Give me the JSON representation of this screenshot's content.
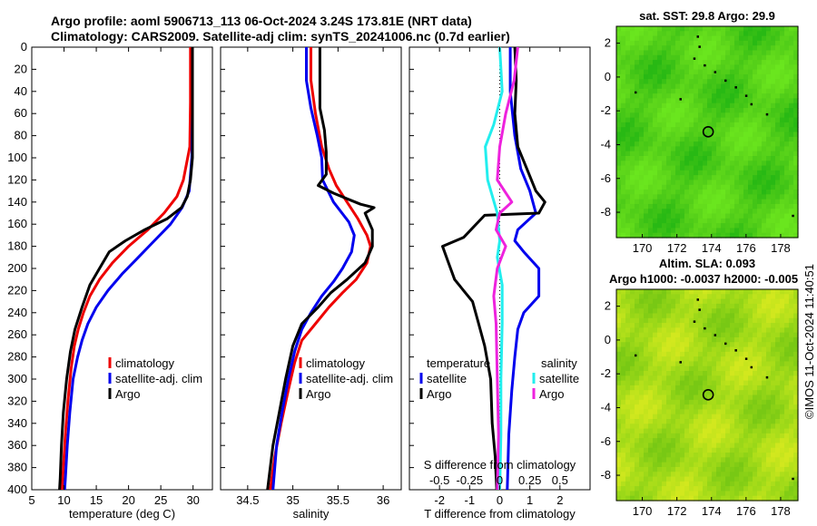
{
  "header": {
    "line1": "Argo profile: aoml 5906713_113 06-Oct-2024 3.24S 173.81E (NRT data)",
    "line2": "Climatology: CARS2009. Satellite-adj clim: synTS_20241006.nc (0.7d earlier)"
  },
  "credit": "©IMOS 11-Oct-2024 11:40:51",
  "colors": {
    "climatology": "#ee0000",
    "satellite": "#0000ee",
    "argo": "#000000",
    "salinity_satellite": "#22eeee",
    "salinity_argo": "#ee22dd"
  },
  "chart_data": [
    {
      "id": "temperature",
      "type": "line",
      "xlabel": "temperature (deg C)",
      "ylabel": "",
      "xlim": [
        5,
        33
      ],
      "ylim": [
        400,
        0
      ],
      "xticks": [
        5,
        10,
        15,
        20,
        25,
        30
      ],
      "yticks": [
        0,
        20,
        40,
        60,
        80,
        100,
        120,
        140,
        160,
        180,
        200,
        220,
        240,
        260,
        280,
        300,
        320,
        340,
        360,
        380,
        400
      ],
      "legend": [
        "climatology",
        "satellite-adj. clim",
        "Argo"
      ],
      "series": [
        {
          "name": "climatology",
          "color": "#ee0000",
          "points": [
            [
              29.6,
              0
            ],
            [
              29.6,
              50
            ],
            [
              29.5,
              90
            ],
            [
              28.5,
              120
            ],
            [
              27.5,
              135
            ],
            [
              25.5,
              150
            ],
            [
              23,
              165
            ],
            [
              20,
              180
            ],
            [
              17.5,
              195
            ],
            [
              15.5,
              210
            ],
            [
              14,
              225
            ],
            [
              13,
              240
            ],
            [
              12.2,
              255
            ],
            [
              11.6,
              270
            ],
            [
              11.1,
              290
            ],
            [
              10.6,
              320
            ],
            [
              10.2,
              350
            ],
            [
              9.9,
              380
            ],
            [
              9.7,
              400
            ]
          ]
        },
        {
          "name": "satellite-adj. clim",
          "color": "#0000ee",
          "points": [
            [
              29.9,
              0
            ],
            [
              29.9,
              60
            ],
            [
              29.8,
              100
            ],
            [
              29.4,
              130
            ],
            [
              28.3,
              145
            ],
            [
              26.5,
              160
            ],
            [
              24,
              175
            ],
            [
              21.5,
              190
            ],
            [
              19,
              205
            ],
            [
              16.8,
              220
            ],
            [
              15,
              235
            ],
            [
              13.7,
              250
            ],
            [
              12.8,
              265
            ],
            [
              12.1,
              280
            ],
            [
              11.4,
              300
            ],
            [
              10.9,
              330
            ],
            [
              10.5,
              360
            ],
            [
              10.2,
              390
            ],
            [
              10.1,
              400
            ]
          ]
        },
        {
          "name": "Argo",
          "color": "#000000",
          "points": [
            [
              29.9,
              0
            ],
            [
              29.9,
              60
            ],
            [
              29.9,
              100
            ],
            [
              29.6,
              120
            ],
            [
              29.1,
              135
            ],
            [
              28.2,
              145
            ],
            [
              26,
              155
            ],
            [
              22.5,
              165
            ],
            [
              19.5,
              175
            ],
            [
              17,
              185
            ],
            [
              15.5,
              200
            ],
            [
              14,
              215
            ],
            [
              12.8,
              235
            ],
            [
              11.7,
              255
            ],
            [
              11,
              275
            ],
            [
              10.4,
              300
            ],
            [
              9.9,
              330
            ],
            [
              9.6,
              360
            ],
            [
              9.4,
              390
            ],
            [
              9.3,
              400
            ]
          ]
        }
      ]
    },
    {
      "id": "salinity",
      "type": "line",
      "xlabel": "salinity",
      "ylabel": "",
      "xlim": [
        34.2,
        36.2
      ],
      "ylim": [
        400,
        0
      ],
      "xticks": [
        34.5,
        35,
        35.5,
        36
      ],
      "legend": [
        "climatology",
        "satellite-adj. clim",
        "Argo"
      ],
      "series": [
        {
          "name": "climatology",
          "color": "#ee0000",
          "points": [
            [
              35.2,
              0
            ],
            [
              35.2,
              30
            ],
            [
              35.25,
              60
            ],
            [
              35.32,
              90
            ],
            [
              35.4,
              110
            ],
            [
              35.48,
              125
            ],
            [
              35.6,
              140
            ],
            [
              35.72,
              155
            ],
            [
              35.82,
              170
            ],
            [
              35.86,
              180
            ],
            [
              35.82,
              195
            ],
            [
              35.7,
              210
            ],
            [
              35.55,
              222
            ],
            [
              35.4,
              235
            ],
            [
              35.25,
              250
            ],
            [
              35.1,
              265
            ],
            [
              35.02,
              285
            ],
            [
              34.95,
              310
            ],
            [
              34.87,
              340
            ],
            [
              34.8,
              370
            ],
            [
              34.75,
              400
            ]
          ]
        },
        {
          "name": "satellite-adj. clim",
          "color": "#0000ee",
          "points": [
            [
              35.15,
              0
            ],
            [
              35.15,
              30
            ],
            [
              35.2,
              55
            ],
            [
              35.27,
              80
            ],
            [
              35.32,
              100
            ],
            [
              35.33,
              120
            ],
            [
              35.45,
              140
            ],
            [
              35.62,
              158
            ],
            [
              35.68,
              170
            ],
            [
              35.65,
              185
            ],
            [
              35.55,
              200
            ],
            [
              35.45,
              212
            ],
            [
              35.32,
              225
            ],
            [
              35.2,
              240
            ],
            [
              35.1,
              255
            ],
            [
              35.02,
              275
            ],
            [
              34.95,
              300
            ],
            [
              34.88,
              330
            ],
            [
              34.82,
              360
            ],
            [
              34.78,
              400
            ]
          ]
        },
        {
          "name": "Argo",
          "color": "#000000",
          "points": [
            [
              35.3,
              0
            ],
            [
              35.3,
              30
            ],
            [
              35.3,
              55
            ],
            [
              35.35,
              75
            ],
            [
              35.37,
              95
            ],
            [
              35.37,
              115
            ],
            [
              35.28,
              125
            ],
            [
              35.45,
              132
            ],
            [
              35.75,
              142
            ],
            [
              35.9,
              145
            ],
            [
              35.8,
              150
            ],
            [
              35.88,
              165
            ],
            [
              35.88,
              180
            ],
            [
              35.8,
              195
            ],
            [
              35.6,
              210
            ],
            [
              35.42,
              222
            ],
            [
              35.28,
              235
            ],
            [
              35.1,
              250
            ],
            [
              35.0,
              270
            ],
            [
              34.92,
              300
            ],
            [
              34.85,
              330
            ],
            [
              34.78,
              360
            ],
            [
              34.72,
              400
            ]
          ]
        }
      ]
    },
    {
      "id": "difference",
      "type": "line",
      "xlabel": "T difference from climatology",
      "xlabel2": "S difference from climatology",
      "xlim": [
        -3,
        3
      ],
      "x2lim": [
        -0.75,
        0.75
      ],
      "ylim": [
        400,
        0
      ],
      "xticks": [
        -2,
        -1,
        0,
        1,
        2
      ],
      "x2ticks": [
        -0.5,
        -0.25,
        0,
        0.25,
        0.5
      ],
      "legend_left": {
        "header": "temperature",
        "items": [
          "satellite",
          "Argo"
        ]
      },
      "legend_right": {
        "header": "salinity",
        "items": [
          "satellite",
          "Argo"
        ]
      },
      "series": [
        {
          "name": "temperature satellite",
          "color": "#0000ee",
          "points": [
            [
              0.35,
              0
            ],
            [
              0.35,
              40
            ],
            [
              0.5,
              80
            ],
            [
              0.7,
              110
            ],
            [
              1.0,
              130
            ],
            [
              1.2,
              150
            ],
            [
              0.6,
              165
            ],
            [
              0.5,
              175
            ],
            [
              0.8,
              185
            ],
            [
              1.3,
              200
            ],
            [
              1.3,
              225
            ],
            [
              0.8,
              240
            ],
            [
              0.6,
              255
            ],
            [
              0.5,
              280
            ],
            [
              0.4,
              310
            ],
            [
              0.3,
              350
            ],
            [
              0.25,
              400
            ]
          ]
        },
        {
          "name": "temperature Argo",
          "color": "#000000",
          "points": [
            [
              0.5,
              0
            ],
            [
              0.55,
              30
            ],
            [
              0.5,
              60
            ],
            [
              0.6,
              90
            ],
            [
              0.9,
              110
            ],
            [
              1.2,
              130
            ],
            [
              1.5,
              140
            ],
            [
              1.3,
              150
            ],
            [
              -0.5,
              152
            ],
            [
              -1.2,
              172
            ],
            [
              -1.9,
              180
            ],
            [
              -1.7,
              195
            ],
            [
              -1.5,
              210
            ],
            [
              -0.9,
              230
            ],
            [
              -0.7,
              250
            ],
            [
              -0.5,
              270
            ],
            [
              -0.3,
              300
            ],
            [
              -0.25,
              340
            ],
            [
              -0.15,
              370
            ],
            [
              -0.1,
              400
            ]
          ]
        },
        {
          "name": "salinity satellite",
          "color": "#22eeee",
          "points": [
            [
              0.0,
              0
            ],
            [
              0.02,
              40
            ],
            [
              -0.05,
              70
            ],
            [
              -0.12,
              90
            ],
            [
              -0.1,
              120
            ],
            [
              -0.02,
              150
            ],
            [
              0.0,
              175
            ],
            [
              -0.02,
              190
            ],
            [
              0.02,
              215
            ],
            [
              0.02,
              250
            ],
            [
              0.01,
              300
            ],
            [
              0.01,
              350
            ],
            [
              0.0,
              400
            ]
          ]
        },
        {
          "name": "salinity Argo",
          "color": "#ee22dd",
          "points": [
            [
              0.15,
              0
            ],
            [
              0.12,
              30
            ],
            [
              0.05,
              60
            ],
            [
              0.0,
              90
            ],
            [
              -0.02,
              120
            ],
            [
              0.1,
              140
            ],
            [
              0.0,
              150
            ],
            [
              -0.03,
              165
            ],
            [
              0.05,
              180
            ],
            [
              -0.02,
              200
            ],
            [
              -0.05,
              225
            ],
            [
              -0.03,
              250
            ],
            [
              -0.02,
              300
            ],
            [
              -0.01,
              350
            ],
            [
              -0.02,
              400
            ]
          ]
        }
      ]
    },
    {
      "id": "sst_map",
      "type": "heatmap",
      "title": "sat. SST: 29.8 Argo: 29.9",
      "xlim": [
        168.5,
        179
      ],
      "ylim": [
        -9.5,
        3
      ],
      "xticks": [
        170,
        172,
        174,
        176,
        178
      ],
      "yticks": [
        2,
        0,
        -2,
        -4,
        -6,
        -8
      ],
      "marker": [
        173.81,
        -3.24
      ]
    },
    {
      "id": "sla_map",
      "type": "heatmap",
      "title": "Altim. SLA: 0.093",
      "title2": "Argo h1000: -0.0037 h2000: -0.005",
      "xlim": [
        168.5,
        179
      ],
      "ylim": [
        -9.5,
        3
      ],
      "xticks": [
        170,
        172,
        174,
        176,
        178
      ],
      "yticks": [
        2,
        0,
        -2,
        -4,
        -6,
        -8
      ],
      "marker": [
        173.81,
        -3.24
      ]
    }
  ]
}
